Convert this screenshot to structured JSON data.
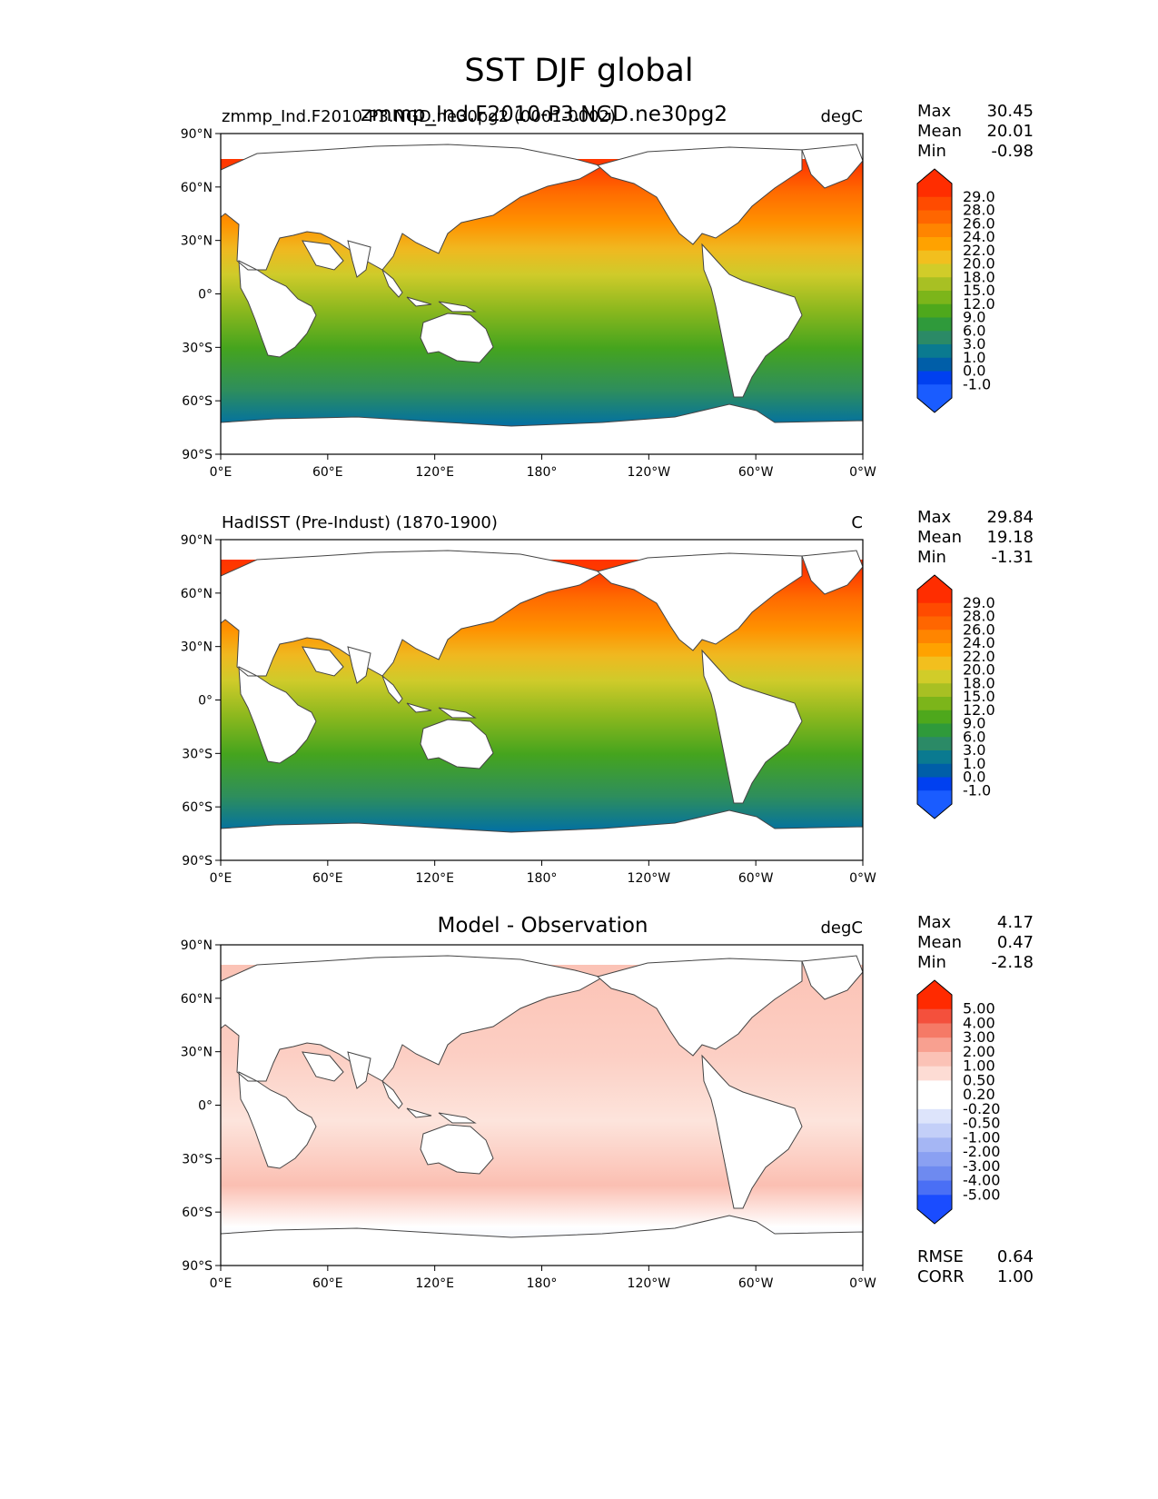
{
  "title": "SST DJF global",
  "panels": [
    {
      "id": "test",
      "title_left": "zmmp_Ind.F2010-P3.NGD.ne30pg2 (0001-0002)",
      "title_center": "zmmp_Ind.F2010-P3.NGD.ne30pg2",
      "units": "degC",
      "stats": [
        {
          "label": "Max",
          "value": "30.45"
        },
        {
          "label": "Mean",
          "value": "20.01"
        },
        {
          "label": "Min",
          "value": "-0.98"
        }
      ],
      "colorbar": {
        "ticks": [
          "29.0",
          "28.0",
          "26.0",
          "24.0",
          "22.0",
          "20.0",
          "18.0",
          "15.0",
          "12.0",
          "9.0",
          "6.0",
          "3.0",
          "1.0",
          "0.0",
          "-1.0"
        ],
        "colors": [
          "#ff2d00",
          "#ff4b00",
          "#ff6600",
          "#ff8500",
          "#ffa200",
          "#f2bf1e",
          "#d1cc29",
          "#a8c023",
          "#7cb51a",
          "#4ea81c",
          "#2f9a3b",
          "#2b8a66",
          "#0a7a90",
          "#005ea8",
          "#0040f0",
          "#1a5cff"
        ]
      }
    },
    {
      "id": "reference",
      "title_left": "HadISST (Pre-Indust) (1870-1900)",
      "units": "C",
      "stats": [
        {
          "label": "Max",
          "value": "29.84"
        },
        {
          "label": "Mean",
          "value": "19.18"
        },
        {
          "label": "Min",
          "value": "-1.31"
        }
      ],
      "colorbar": {
        "ticks": [
          "29.0",
          "28.0",
          "26.0",
          "24.0",
          "22.0",
          "20.0",
          "18.0",
          "15.0",
          "12.0",
          "9.0",
          "6.0",
          "3.0",
          "1.0",
          "0.0",
          "-1.0"
        ],
        "colors": [
          "#ff2d00",
          "#ff4b00",
          "#ff6600",
          "#ff8500",
          "#ffa200",
          "#f2bf1e",
          "#d1cc29",
          "#a8c023",
          "#7cb51a",
          "#4ea81c",
          "#2f9a3b",
          "#2b8a66",
          "#0a7a90",
          "#005ea8",
          "#0040f0",
          "#1a5cff"
        ]
      }
    },
    {
      "id": "diff",
      "title_center": "Model - Observation",
      "units": "degC",
      "stats": [
        {
          "label": "Max",
          "value": "4.17"
        },
        {
          "label": "Mean",
          "value": "0.47"
        },
        {
          "label": "Min",
          "value": "-2.18"
        }
      ],
      "extra_stats": [
        {
          "label": "RMSE",
          "value": "0.64"
        },
        {
          "label": "CORR",
          "value": "1.00"
        }
      ],
      "colorbar": {
        "ticks": [
          "5.00",
          "4.00",
          "3.00",
          "2.00",
          "1.00",
          "0.50",
          "0.20",
          "-0.20",
          "-0.50",
          "-1.00",
          "-2.00",
          "-3.00",
          "-4.00",
          "-5.00"
        ],
        "colors": [
          "#ff2a00",
          "#f4503c",
          "#f57a66",
          "#f8a090",
          "#fbc2b6",
          "#fddcd4",
          "#ffffff",
          "#ffffff",
          "#dde4fb",
          "#c3cff8",
          "#a5b6f4",
          "#8aa0f2",
          "#6e8af0",
          "#4a6ff5",
          "#1a4cff"
        ]
      }
    }
  ],
  "axes": {
    "lat_ticks": [
      "90°N",
      "60°N",
      "30°N",
      "0°",
      "30°S",
      "60°S",
      "90°S"
    ],
    "lon_ticks": [
      "0°E",
      "60°E",
      "120°E",
      "180°",
      "120°W",
      "60°W",
      "0°W"
    ]
  },
  "chart_data": {
    "type": "heatmap",
    "variable": "SST",
    "season": "DJF",
    "region": "global",
    "xlim": [
      0,
      360
    ],
    "ylim": [
      -90,
      90
    ],
    "panels": [
      {
        "name": "zmmp_Ind.F2010-P3.NGD.ne30pg2",
        "units": "degC",
        "max": 30.45,
        "mean": 20.01,
        "min": -0.98,
        "levels": [
          -1.0,
          0.0,
          1.0,
          3.0,
          6.0,
          9.0,
          12.0,
          15.0,
          18.0,
          20.0,
          22.0,
          24.0,
          26.0,
          28.0,
          29.0
        ]
      },
      {
        "name": "HadISST (Pre-Indust) (1870-1900)",
        "units": "C",
        "max": 29.84,
        "mean": 19.18,
        "min": -1.31,
        "levels": [
          -1.0,
          0.0,
          1.0,
          3.0,
          6.0,
          9.0,
          12.0,
          15.0,
          18.0,
          20.0,
          22.0,
          24.0,
          26.0,
          28.0,
          29.0
        ]
      },
      {
        "name": "Model - Observation",
        "units": "degC",
        "max": 4.17,
        "mean": 0.47,
        "min": -2.18,
        "rmse": 0.64,
        "corr": 1.0,
        "levels": [
          -5.0,
          -4.0,
          -3.0,
          -2.0,
          -1.0,
          -0.5,
          -0.2,
          0.2,
          0.5,
          1.0,
          2.0,
          3.0,
          4.0,
          5.0
        ]
      }
    ]
  }
}
